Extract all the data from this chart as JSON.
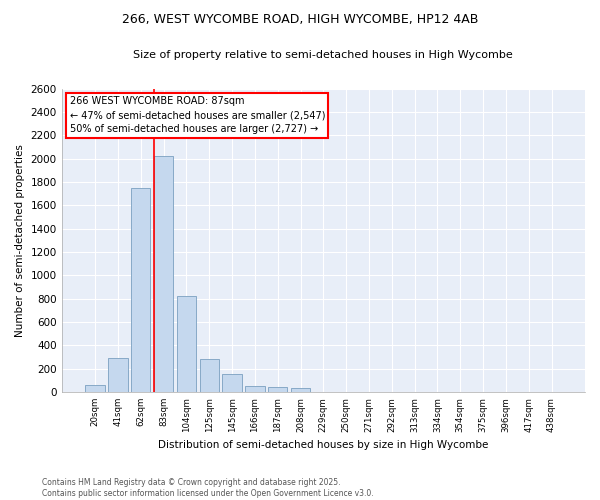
{
  "title": "266, WEST WYCOMBE ROAD, HIGH WYCOMBE, HP12 4AB",
  "subtitle": "Size of property relative to semi-detached houses in High Wycombe",
  "xlabel": "Distribution of semi-detached houses by size in High Wycombe",
  "ylabel": "Number of semi-detached properties",
  "categories": [
    "20sqm",
    "41sqm",
    "62sqm",
    "83sqm",
    "104sqm",
    "125sqm",
    "145sqm",
    "166sqm",
    "187sqm",
    "208sqm",
    "229sqm",
    "250sqm",
    "271sqm",
    "292sqm",
    "313sqm",
    "334sqm",
    "354sqm",
    "375sqm",
    "396sqm",
    "417sqm",
    "438sqm"
  ],
  "values": [
    60,
    295,
    1750,
    2020,
    820,
    285,
    155,
    55,
    45,
    35,
    0,
    0,
    0,
    0,
    0,
    0,
    0,
    0,
    0,
    0,
    0
  ],
  "bar_color": "#c5d8ee",
  "bar_edge_color": "#7aA0c0",
  "plot_bg_color": "#e8eef8",
  "fig_bg_color": "#ffffff",
  "grid_color": "#ffffff",
  "vline_color": "red",
  "vline_x_index": 3,
  "annotation_title": "266 WEST WYCOMBE ROAD: 87sqm",
  "annotation_line1": "← 47% of semi-detached houses are smaller (2,547)",
  "annotation_line2": "50% of semi-detached houses are larger (2,727) →",
  "annotation_box_facecolor": "white",
  "annotation_box_edgecolor": "red",
  "footer_line1": "Contains HM Land Registry data © Crown copyright and database right 2025.",
  "footer_line2": "Contains public sector information licensed under the Open Government Licence v3.0.",
  "ylim": [
    0,
    2600
  ],
  "yticks": [
    0,
    200,
    400,
    600,
    800,
    1000,
    1200,
    1400,
    1600,
    1800,
    2000,
    2200,
    2400,
    2600
  ]
}
